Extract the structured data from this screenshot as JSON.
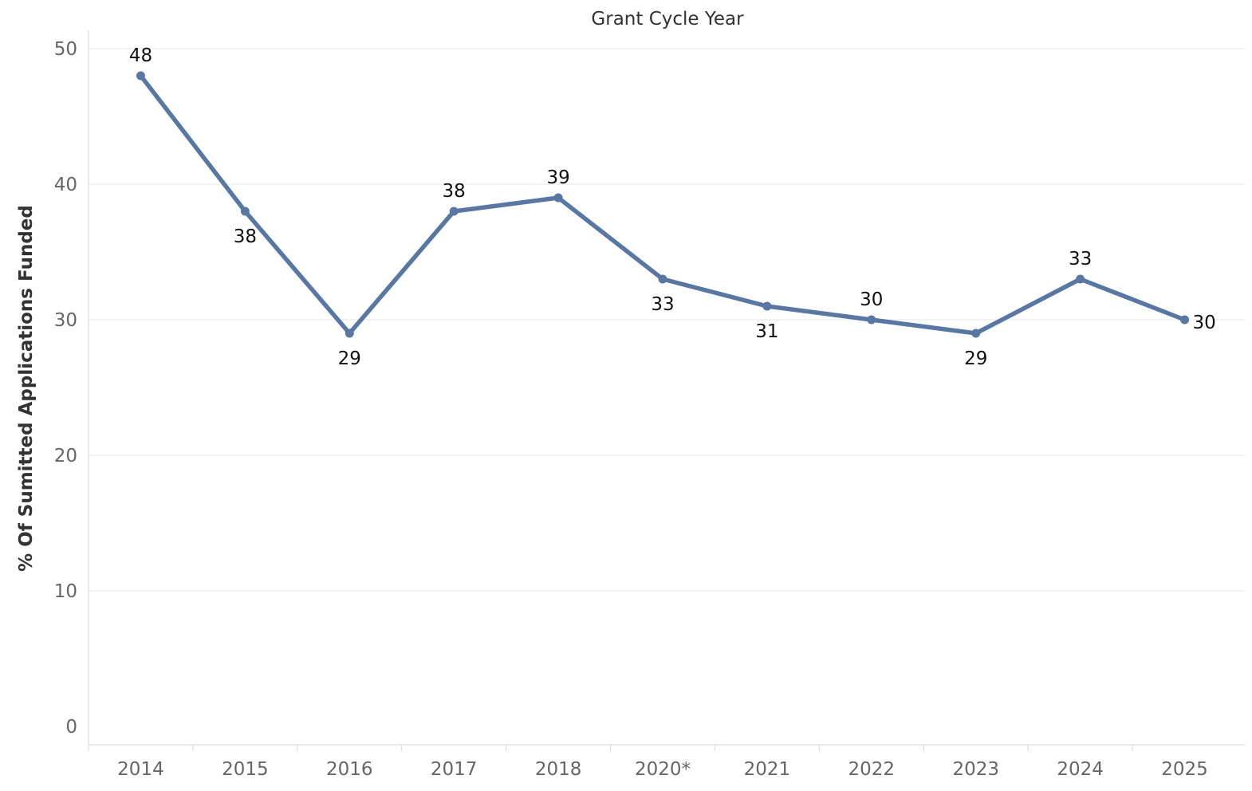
{
  "chart_data": {
    "type": "line",
    "title": "Grant Cycle Year",
    "xlabel": "",
    "ylabel": "% Of Sumitted Applications Funded",
    "ylim": [
      0,
      50
    ],
    "yticks": [
      "0",
      "10",
      "20",
      "30",
      "40",
      "50"
    ],
    "grid": true,
    "categories": [
      "2014",
      "2015",
      "2016",
      "2017",
      "2018",
      "2020*",
      "2021",
      "2022",
      "2023",
      "2024",
      "2025"
    ],
    "series": [
      {
        "values": [
          48,
          38,
          29,
          38,
          39,
          33,
          31,
          30,
          29,
          33,
          30
        ],
        "labels": [
          "48",
          "38",
          "29",
          "38",
          "39",
          "33",
          "31",
          "30",
          "29",
          "33",
          "30"
        ]
      }
    ],
    "colors": {
      "line": "#5878a3",
      "grid": "#ececec",
      "axis": "#dddddd"
    }
  }
}
